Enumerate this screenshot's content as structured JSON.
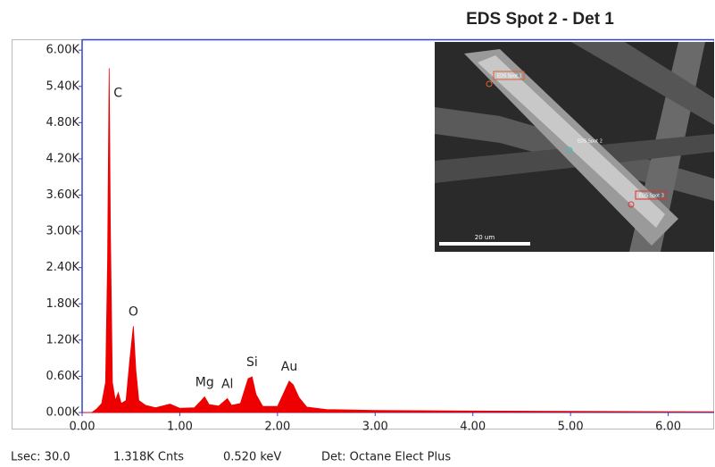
{
  "chart_data": {
    "type": "area",
    "title": "EDS Spot 2 - Det 1",
    "color": "#ee0000",
    "x": [
      0.0,
      0.1,
      0.15,
      0.2,
      0.24,
      0.26,
      0.277,
      0.29,
      0.31,
      0.34,
      0.37,
      0.4,
      0.45,
      0.49,
      0.525,
      0.55,
      0.58,
      0.65,
      0.75,
      0.9,
      1.0,
      1.15,
      1.22,
      1.254,
      1.3,
      1.4,
      1.487,
      1.53,
      1.62,
      1.7,
      1.74,
      1.78,
      1.85,
      2.0,
      2.08,
      2.12,
      2.16,
      2.22,
      2.3,
      2.5,
      3.0,
      4.0,
      5.0,
      6.0,
      6.47
    ],
    "values": [
      0,
      0,
      60,
      150,
      500,
      2500,
      5700,
      3000,
      500,
      200,
      330,
      150,
      200,
      900,
      1430,
      700,
      200,
      120,
      80,
      140,
      70,
      80,
      200,
      260,
      130,
      110,
      230,
      120,
      150,
      560,
      590,
      300,
      100,
      100,
      380,
      520,
      460,
      250,
      90,
      50,
      35,
      25,
      20,
      15,
      12
    ],
    "xlim": [
      0,
      6.47
    ],
    "ylim": [
      0,
      6180
    ],
    "xticks": [
      {
        "value": 0,
        "label": "0.00"
      },
      {
        "value": 1,
        "label": "1.00"
      },
      {
        "value": 2,
        "label": "2.00"
      },
      {
        "value": 3,
        "label": "3.00"
      },
      {
        "value": 4,
        "label": "4.00"
      },
      {
        "value": 5,
        "label": "5.00"
      },
      {
        "value": 6,
        "label": "6.00"
      }
    ],
    "yticks": [
      {
        "value": 0,
        "label": "0.00K"
      },
      {
        "value": 600,
        "label": "0.60K"
      },
      {
        "value": 1200,
        "label": "1.20K"
      },
      {
        "value": 1800,
        "label": "1.80K"
      },
      {
        "value": 2400,
        "label": "2.40K"
      },
      {
        "value": 3000,
        "label": "3.00K"
      },
      {
        "value": 3600,
        "label": "3.60K"
      },
      {
        "value": 4200,
        "label": "4.20K"
      },
      {
        "value": 4800,
        "label": "4.80K"
      },
      {
        "value": 5400,
        "label": "5.40K"
      },
      {
        "value": 6000,
        "label": "6.00K"
      }
    ],
    "peaks": [
      {
        "label": "C",
        "energy": 0.277
      },
      {
        "label": "O",
        "energy": 0.525
      },
      {
        "label": "Mg",
        "energy": 1.254
      },
      {
        "label": "Al",
        "energy": 1.487
      },
      {
        "label": "Si",
        "energy": 1.74
      },
      {
        "label": "Au",
        "energy": 2.12
      }
    ],
    "footer": [
      "Lsec: 30.0",
      "1.318K Cnts",
      "0.520 keV",
      "Det: Octane Elect Plus"
    ],
    "inset": {
      "labels": [
        "EDS Spot 1",
        "EDS Spot 2",
        "EDS Spot 3"
      ],
      "scale_bar": "20 um"
    }
  }
}
